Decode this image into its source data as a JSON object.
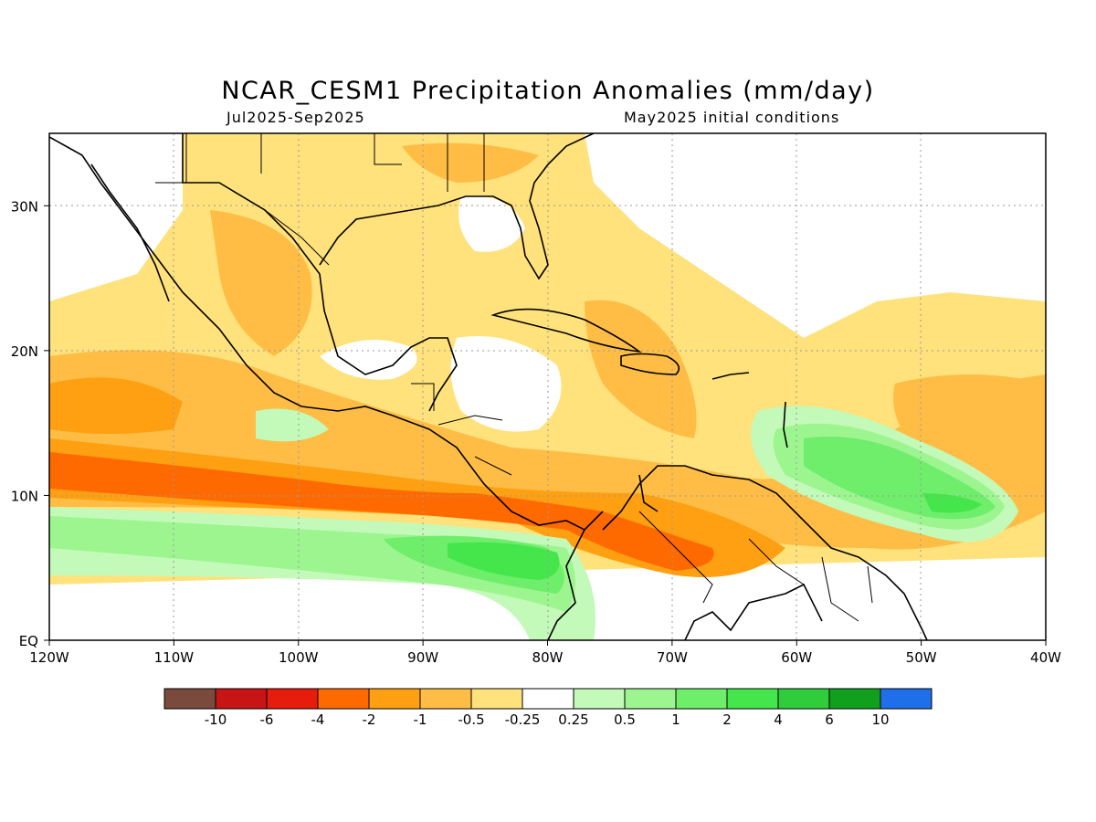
{
  "title": "NCAR_CESM1 Precipitation Anomalies (mm/day)",
  "period": "Jul2025-Sep2025",
  "init": "May2025 initial conditions",
  "axes": {
    "x_ticks": [
      "120W",
      "110W",
      "100W",
      "90W",
      "80W",
      "70W",
      "60W",
      "50W",
      "40W"
    ],
    "y_ticks": [
      "EQ",
      "10N",
      "20N",
      "30N"
    ],
    "lon_range": [
      -120,
      -40
    ],
    "lat_range": [
      0,
      35
    ],
    "grid": true
  },
  "colorbar": {
    "colors": [
      "#7a4a3d",
      "#c81414",
      "#e61c0c",
      "#ff6a00",
      "#ff9f12",
      "#ffbd45",
      "#ffe27c",
      "#ffffff",
      "#c3f9b9",
      "#9df58f",
      "#6eee6a",
      "#44e64c",
      "#2fcc3b",
      "#11a01d",
      "#1f6fea"
    ],
    "labels": [
      "-10",
      "-6",
      "-4",
      "-2",
      "-1",
      "-0.5",
      "-0.25",
      "0.25",
      "0.5",
      "1",
      "2",
      "4",
      "6",
      "10"
    ]
  },
  "colors": {
    "frame": "#000000",
    "grid": "#9a9a9a",
    "coast": "#000000"
  }
}
